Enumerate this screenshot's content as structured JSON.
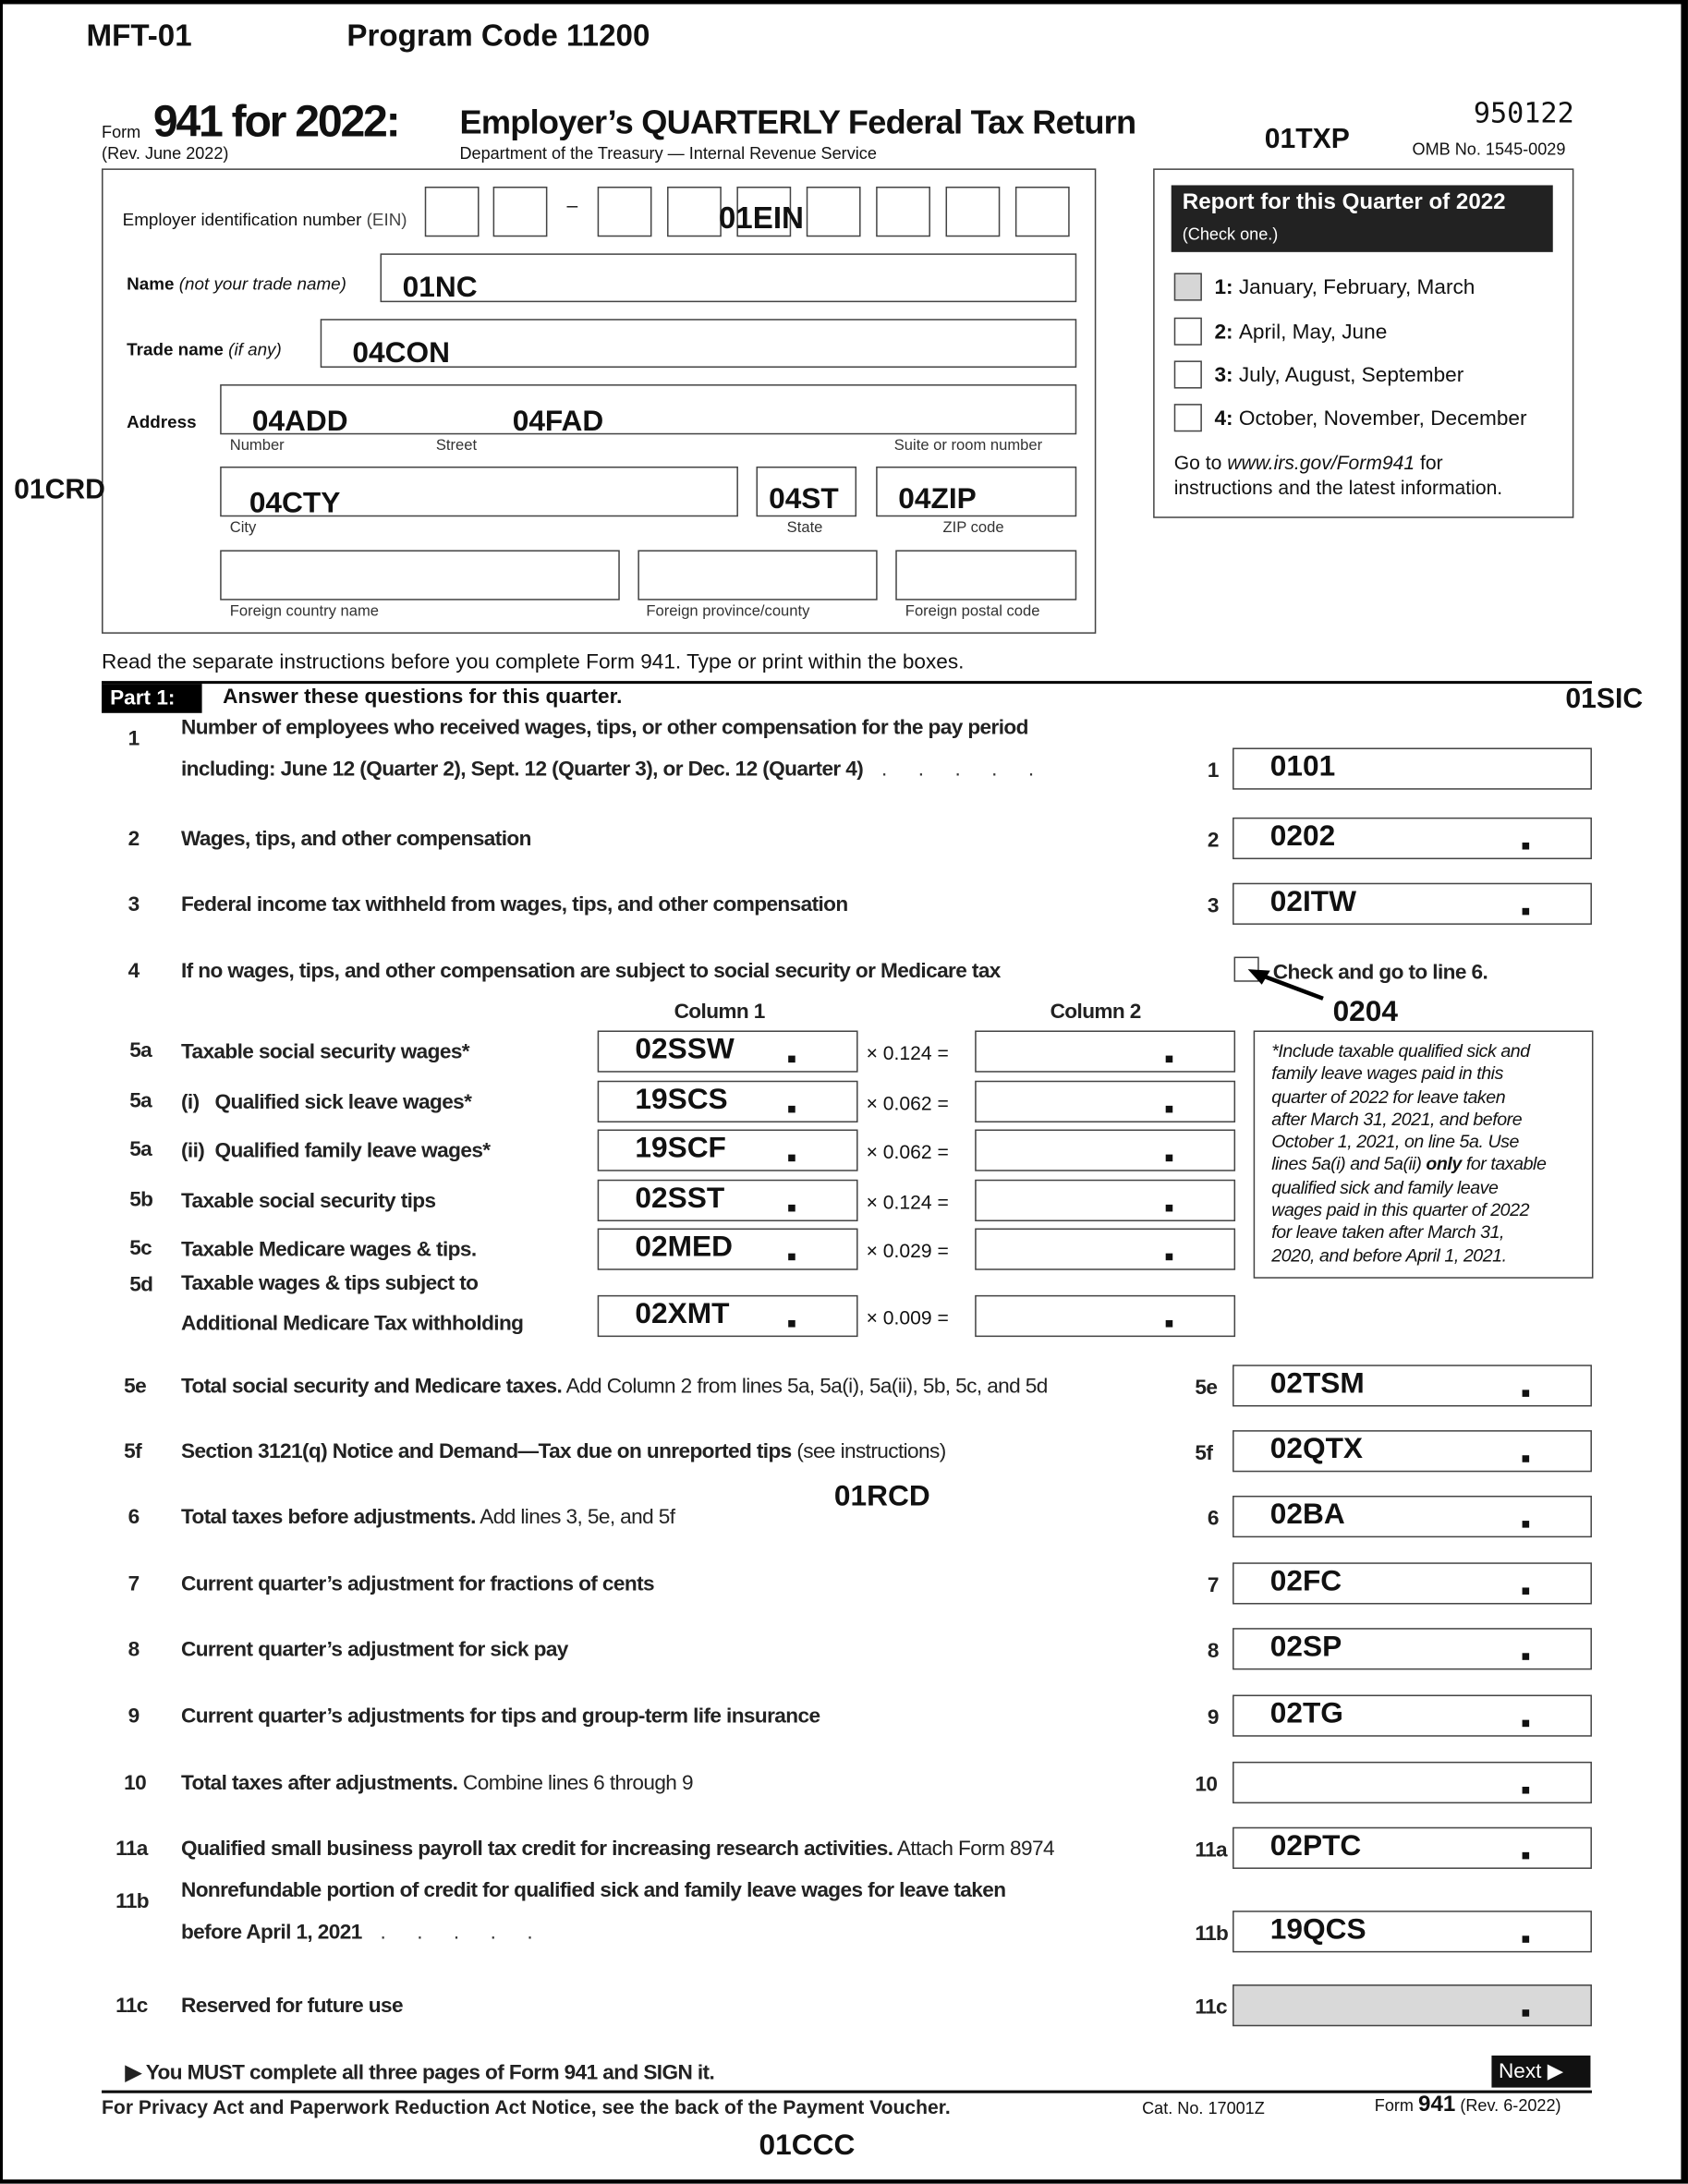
{
  "header": {
    "mft": "MFT-01",
    "program_code": "Program Code 11200",
    "form_word": "Form",
    "form_number": "941 for 2022:",
    "title": "Employer’s QUARTERLY Federal Tax Return",
    "rev": "(Rev. June 2022)",
    "dept": "Department of the Treasury — Internal Revenue Service",
    "txp_code": "01TXP",
    "barcode_number": "950122",
    "omb": "OMB No. 1545-0029"
  },
  "entity": {
    "ein_label": "Employer identification number",
    "ein_suffix": "(EIN)",
    "ein_code": "01EIN",
    "name_label": "Name",
    "name_note": "(not your trade name)",
    "name_code": "01NC",
    "trade_label": "Trade name",
    "trade_note": "(if any)",
    "trade_code": "04CON",
    "address_label": "Address",
    "address_code": "04ADD",
    "street_code": "04FAD",
    "number_label": "Number",
    "street_label": "Street",
    "suite_label": "Suite or room number",
    "city_code": "04CTY",
    "state_code": "04ST",
    "zip_code": "04ZIP",
    "city_label": "City",
    "state_label": "State",
    "zip_label": "ZIP code",
    "foreign_country_label": "Foreign country name",
    "foreign_province_label": "Foreign province/county",
    "foreign_postal_label": "Foreign postal code",
    "crd_code": "01CRD"
  },
  "quarter": {
    "title": "Report for this Quarter of 2022",
    "subtitle": "(Check one.)",
    "options": [
      {
        "num": "1:",
        "label": "January, February, March",
        "checked": false,
        "shaded": true
      },
      {
        "num": "2:",
        "label": "April, May, June",
        "checked": false
      },
      {
        "num": "3:",
        "label": "July, August, September",
        "checked": false
      },
      {
        "num": "4:",
        "label": "October, November, December",
        "checked": false
      }
    ],
    "goto_pre": "Go to ",
    "goto_url": "www.irs.gov/Form941",
    "goto_post": " for",
    "goto_line2": "instructions and the latest information."
  },
  "instructions": "Read the separate instructions before you complete Form 941. Type or print within the boxes.",
  "part1": {
    "label": "Part 1:",
    "title": "Answer these questions for this quarter.",
    "sic_code": "01SIC",
    "col1": "Column 1",
    "col2": "Column 2",
    "line4_check_label": "Check and go to line 6.",
    "line4_code": "0204",
    "footnote": [
      "*Include taxable qualified sick and",
      "family leave wages paid in this",
      "quarter of 2022 for leave taken",
      "after March 31, 2021, and before",
      "October 1, 2021, on line 5a. Use",
      "lines 5a(i) and 5a(ii) only for taxable",
      "qualified sick and family leave",
      "wages paid in this quarter of 2022",
      "for leave taken after March 31,",
      "2020, and before April 1, 2021."
    ],
    "rcd_code": "01RCD"
  },
  "lines": [
    {
      "num": "1",
      "text": "Number of employees who received wages, tips, or other compensation for the pay period",
      "text2": "including: June 12 (Quarter 2), Sept. 12 (Quarter 3), or Dec. 12 (Quarter 4)",
      "ref": "1",
      "value": "0101",
      "nodot": true
    },
    {
      "num": "2",
      "text": "Wages, tips, and other compensation",
      "ref": "2",
      "value": "0202"
    },
    {
      "num": "3",
      "text": "Federal income tax withheld from wages, tips, and other compensation",
      "ref": "3",
      "value": "02ITW"
    },
    {
      "num": "4",
      "text": "If no wages, tips, and other compensation are subject to social security or Medicare tax",
      "nobox": true
    },
    {
      "num": "5e",
      "text": "Total social security and Medicare taxes.",
      "note": " Add Column 2 from lines 5a, 5a(i), 5a(ii), 5b, 5c, and 5d",
      "ref": "5e",
      "value": "02TSM"
    },
    {
      "num": "5f",
      "text": "Section 3121(q) Notice and Demand—Tax due on unreported tips",
      "note": " (see instructions)",
      "ref": "5f",
      "value": "02QTX"
    },
    {
      "num": "6",
      "text": "Total taxes before adjustments.",
      "note": " Add lines 3, 5e, and 5f",
      "ref": "6",
      "value": "02BA"
    },
    {
      "num": "7",
      "text": "Current quarter’s adjustment for fractions of cents",
      "ref": "7",
      "value": "02FC"
    },
    {
      "num": "8",
      "text": "Current quarter’s adjustment for sick pay",
      "ref": "8",
      "value": "02SP"
    },
    {
      "num": "9",
      "text": "Current quarter’s adjustments for tips and group-term life insurance",
      "ref": "9",
      "value": "02TG"
    },
    {
      "num": "10",
      "text": "Total taxes after adjustments.",
      "note": " Combine lines 6 through 9",
      "ref": "10",
      "value": ""
    },
    {
      "num": "11a",
      "text": "Qualified small business payroll tax credit for increasing research activities.",
      "note": " Attach Form 8974",
      "ref": "11a",
      "value": "02PTC"
    },
    {
      "num": "11b",
      "text": "Nonrefundable portion of credit for qualified sick and family leave wages for leave taken",
      "text2": "before April 1, 2021",
      "ref": "11b",
      "value": "19QCS"
    },
    {
      "num": "11c",
      "text": "Reserved for future use",
      "ref": "11c",
      "value": "",
      "shaded": true
    }
  ],
  "line5": [
    {
      "num": "5a",
      "text": "Taxable social security wages*",
      "value": "02SSW",
      "rate": "× 0.124 ="
    },
    {
      "num": "5a",
      "text": "(i)   Qualified sick leave wages*",
      "value": "19SCS",
      "rate": "× 0.062 ="
    },
    {
      "num": "5a",
      "text": "(ii)  Qualified family leave wages*",
      "value": "19SCF",
      "rate": "× 0.062 ="
    },
    {
      "num": "5b",
      "text": "Taxable social security tips",
      "value": "02SST",
      "rate": "× 0.124 ="
    },
    {
      "num": "5c",
      "text": "Taxable Medicare wages & tips.",
      "value": "02MED",
      "rate": "× 0.029 ="
    },
    {
      "num": "5d",
      "text": "Taxable wages & tips subject to",
      "text2": "Additional Medicare Tax withholding",
      "value": "02XMT",
      "rate": "× 0.009 ="
    }
  ],
  "footer": {
    "must": "You MUST complete all three pages of Form 941 and SIGN it.",
    "next": "Next",
    "privacy": "For Privacy Act and Paperwork Reduction Act Notice, see the back of the Payment Voucher.",
    "cat": "Cat. No. 17001Z",
    "form_ref_pre": "Form ",
    "form_ref_num": "941",
    "form_ref_post": " (Rev. 6-2022)",
    "ccc_code": "01CCC"
  }
}
